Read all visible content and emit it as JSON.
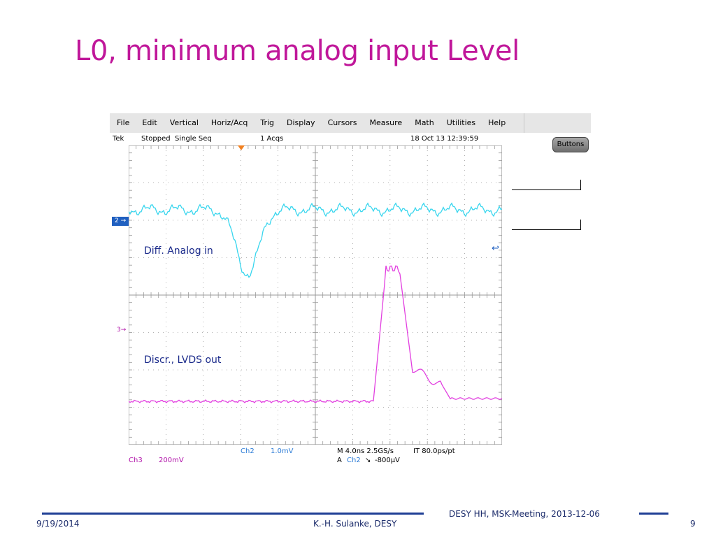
{
  "slide": {
    "title": "L0, minimum analog input Level",
    "footer": {
      "date": "9/19/2014",
      "author": "K.-H. Sulanke, DESY",
      "meeting": "DESY HH, MSK-Meeting, 2013-12-06",
      "page": "9"
    }
  },
  "scope": {
    "menu": [
      "File",
      "Edit",
      "Vertical",
      "Horiz/Acq",
      "Trig",
      "Display",
      "Cursors",
      "Measure",
      "Math",
      "Utilities",
      "Help"
    ],
    "status": {
      "brand": "Tek",
      "state": "Stopped",
      "mode": "Single Seq",
      "acqs": "1 Acqs",
      "datetime": "18 Oct 13 12:39:59"
    },
    "buttons_label": "Buttons",
    "markers": {
      "ch2": "2",
      "ch3": "3"
    },
    "labels": {
      "analog": "Diff. Analog in",
      "lvds": "Discr., LVDS out"
    },
    "readouts": {
      "ch3_name": "Ch3",
      "ch3_scale": "200mV",
      "ch2_name": "Ch2",
      "ch2_scale": "1.0mV",
      "timebase": "M 4.0ns 2.5GS/s",
      "interp": "IT 80.0ps/pt",
      "trig_prefix": "A",
      "trig_ch": "Ch2",
      "trig_slope": "↘",
      "trig_level": "-800µV"
    },
    "colors": {
      "ch2": "#39d6ee",
      "ch3": "#e23fe0",
      "grid": "#9a9a9a",
      "marker_bg": "#2060c0"
    },
    "icons": {
      "trigger_marker": "triangle-down-icon",
      "trigger_level": "arrow-left-icon"
    }
  }
}
